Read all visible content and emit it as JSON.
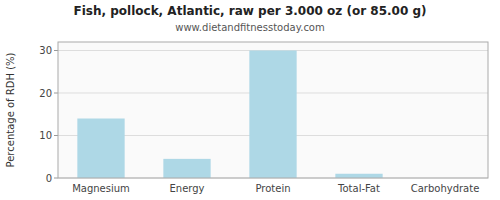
{
  "chart_data": {
    "type": "bar",
    "title": "Fish, pollock, Atlantic, raw per 3.000 oz (or 85.00 g)",
    "subtitle": "www.dietandfitnesstoday.com",
    "categories": [
      "Magnesium",
      "Energy",
      "Protein",
      "Total-Fat",
      "Carbohydrate"
    ],
    "values": [
      14.0,
      4.5,
      30.0,
      1.0,
      0.0
    ],
    "color": "#aed8e6",
    "ylabel": "Percentage of RDH (%)",
    "ylim": [
      0,
      32
    ],
    "yticks": [
      0,
      10,
      20,
      30
    ],
    "grid": true
  }
}
